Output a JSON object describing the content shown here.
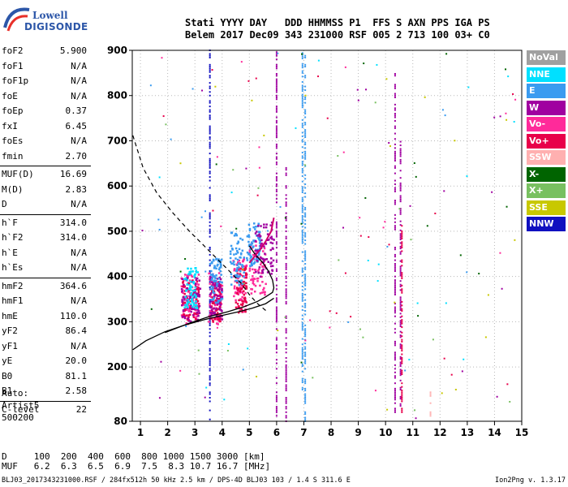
{
  "logo": {
    "line1": "Lowell",
    "line2": "DIGISONDE"
  },
  "header": {
    "line1": "Stati YYYY DAY   DDD HHMMSS P1  FFS S AXN PPS IGA PS",
    "line2": "Belem 2017 Dec09 343 231000 RSF 005 2 713 100 03+ C0"
  },
  "params": [
    {
      "name": "foF2",
      "value": "5.900"
    },
    {
      "name": "foF1",
      "value": "N/A"
    },
    {
      "name": "foF1p",
      "value": "N/A"
    },
    {
      "name": "foE",
      "value": "N/A"
    },
    {
      "name": "foEp",
      "value": "0.37"
    },
    {
      "name": "fxI",
      "value": "6.45"
    },
    {
      "name": "foEs",
      "value": "N/A"
    },
    {
      "name": "fmin",
      "value": "2.70"
    },
    {
      "name": "MUF(D)",
      "value": "16.69"
    },
    {
      "name": "M(D)",
      "value": "2.83"
    },
    {
      "name": "D",
      "value": "N/A"
    },
    {
      "name": "h`F",
      "value": "314.0"
    },
    {
      "name": "h`F2",
      "value": "314.0"
    },
    {
      "name": "h`E",
      "value": "N/A"
    },
    {
      "name": "h`Es",
      "value": "N/A"
    },
    {
      "name": "hmF2",
      "value": "364.6"
    },
    {
      "name": "hmF1",
      "value": "N/A"
    },
    {
      "name": "hmE",
      "value": "110.0"
    },
    {
      "name": "yF2",
      "value": "86.4"
    },
    {
      "name": "yF1",
      "value": "N/A"
    },
    {
      "name": "yE",
      "value": "20.0"
    },
    {
      "name": "B0",
      "value": "81.1"
    },
    {
      "name": "B1",
      "value": "2.58"
    },
    {
      "name": "C-level",
      "value": "22"
    }
  ],
  "auto": {
    "line1": "Auto:",
    "line2": "Artist5",
    "line3": "500200"
  },
  "legend": [
    {
      "label": "NoVal",
      "color": "#a0a0a0"
    },
    {
      "label": "NNE",
      "color": "#00e0ff"
    },
    {
      "label": "E",
      "color": "#3a9bf0"
    },
    {
      "label": "W",
      "color": "#a000a0"
    },
    {
      "label": "Vo-",
      "color": "#ff2a9a"
    },
    {
      "label": "Vo+",
      "color": "#e8004a"
    },
    {
      "label": "SSW",
      "color": "#ffb0b0"
    },
    {
      "label": "X-",
      "color": "#006400"
    },
    {
      "label": "X+",
      "color": "#78c060"
    },
    {
      "label": "SSE",
      "color": "#c8c800"
    },
    {
      "label": "NNW",
      "color": "#1010c0"
    }
  ],
  "muf_table": {
    "line1": "D     100  200  400  600  800 1000 1500 3000 [km]",
    "line2": "MUF   6.2  6.3  6.5  6.9  7.5  8.3 10.7 16.7 [MHz]"
  },
  "footer": "BLJ03_2017343231000.RSF / 284fx512h 50 kHz 2.5 km / DPS-4D BLJ03 103 / 1.4 S 311.6 E",
  "version": "Ion2Png v. 1.3.17",
  "chart_data": {
    "type": "scatter",
    "title": "",
    "xlabel": "",
    "ylabel": "",
    "xlim": [
      0.7,
      15
    ],
    "ylim": [
      80,
      900
    ],
    "x_ticks": [
      1,
      2,
      3,
      4,
      5,
      6,
      7,
      8,
      9,
      10,
      11,
      12,
      13,
      14,
      15
    ],
    "x_tick_labels": [
      "1",
      "2",
      "3",
      "4",
      "5",
      "6",
      "7",
      "8",
      "9",
      "10",
      "11",
      "12",
      "13",
      "14",
      "15"
    ],
    "y_ticks": [
      80,
      200,
      300,
      400,
      500,
      600,
      700,
      800,
      900
    ],
    "y_tick_labels": [
      "80",
      "200",
      "300",
      "400",
      "500",
      "600",
      "700",
      "800",
      "900"
    ],
    "grid": true,
    "profile_curve": {
      "name": "",
      "points": [
        [
          1.9,
          276
        ],
        [
          2.8,
          297
        ],
        [
          3.5,
          311
        ],
        [
          4.2,
          322
        ],
        [
          4.8,
          333
        ],
        [
          5.3,
          345
        ],
        [
          5.6,
          355
        ],
        [
          5.85,
          365
        ],
        [
          5.9,
          375
        ],
        [
          5.85,
          392
        ],
        [
          5.7,
          412
        ],
        [
          5.5,
          430
        ],
        [
          5.2,
          450
        ],
        [
          5.0,
          468
        ]
      ]
    },
    "dashed_curve": {
      "name": "",
      "points": [
        [
          0.72,
          712
        ],
        [
          1.1,
          640
        ],
        [
          1.6,
          585
        ],
        [
          2.2,
          540
        ],
        [
          2.8,
          500
        ],
        [
          3.3,
          470
        ],
        [
          3.8,
          440
        ],
        [
          4.3,
          410
        ],
        [
          4.7,
          385
        ],
        [
          5.0,
          360
        ],
        [
          5.3,
          340
        ],
        [
          5.6,
          325
        ]
      ]
    },
    "ordinary_trace": {
      "points": [
        [
          5.0,
          430
        ],
        [
          5.2,
          445
        ],
        [
          5.4,
          460
        ],
        [
          5.6,
          478
        ],
        [
          5.8,
          500
        ],
        [
          5.9,
          530
        ]
      ]
    },
    "lower_curve": {
      "points": [
        [
          0.72,
          238
        ],
        [
          1.2,
          258
        ],
        [
          1.9,
          278
        ],
        [
          2.6,
          292
        ],
        [
          3.3,
          304
        ],
        [
          4.0,
          314
        ],
        [
          4.6,
          322
        ],
        [
          5.1,
          330
        ],
        [
          5.6,
          340
        ],
        [
          5.9,
          352
        ]
      ]
    },
    "echo_clusters": [
      {
        "color": "#ff2a9a",
        "x": [
          2.5,
          3.2
        ],
        "y": [
          295,
          405
        ]
      },
      {
        "color": "#e8004a",
        "x": [
          2.55,
          3.15
        ],
        "y": [
          300,
          395
        ]
      },
      {
        "color": "#a000a0",
        "x": [
          2.5,
          3.2
        ],
        "y": [
          300,
          400
        ]
      },
      {
        "color": "#00e0ff",
        "x": [
          2.6,
          3.1
        ],
        "y": [
          330,
          420
        ]
      },
      {
        "color": "#ff2a9a",
        "x": [
          3.5,
          4.0
        ],
        "y": [
          295,
          410
        ]
      },
      {
        "color": "#e8004a",
        "x": [
          3.6,
          3.95
        ],
        "y": [
          300,
          390
        ]
      },
      {
        "color": "#a000a0",
        "x": [
          3.55,
          4.0
        ],
        "y": [
          305,
          400
        ]
      },
      {
        "color": "#3a9bf0",
        "x": [
          3.55,
          4.0
        ],
        "y": [
          340,
          440
        ]
      },
      {
        "color": "#ff2a9a",
        "x": [
          4.4,
          4.9
        ],
        "y": [
          320,
          440
        ]
      },
      {
        "color": "#e8004a",
        "x": [
          4.5,
          4.9
        ],
        "y": [
          320,
          420
        ]
      },
      {
        "color": "#3a9bf0",
        "x": [
          4.3,
          4.8
        ],
        "y": [
          380,
          500
        ]
      },
      {
        "color": "#ff2a9a",
        "x": [
          5.0,
          5.6
        ],
        "y": [
          360,
          480
        ]
      },
      {
        "color": "#3a9bf0",
        "x": [
          4.9,
          5.4
        ],
        "y": [
          420,
          520
        ]
      },
      {
        "color": "#a000a0",
        "x": [
          5.2,
          5.9
        ],
        "y": [
          400,
          520
        ]
      }
    ],
    "vertical_streaks": [
      {
        "color": "#1010c0",
        "x": 3.55,
        "y": [
          80,
          900
        ]
      },
      {
        "color": "#a000a0",
        "x": 6.0,
        "y": [
          80,
          900
        ]
      },
      {
        "color": "#3a9bf0",
        "x": 7.05,
        "y": [
          80,
          900
        ]
      },
      {
        "color": "#3a9bf0",
        "x": 6.95,
        "y": [
          150,
          900
        ]
      },
      {
        "color": "#a000a0",
        "x": 10.35,
        "y": [
          100,
          850
        ]
      },
      {
        "color": "#a000a0",
        "x": 10.55,
        "y": [
          110,
          700
        ]
      },
      {
        "color": "#e8004a",
        "x": 10.6,
        "y": [
          100,
          520
        ]
      },
      {
        "color": "#a000a0",
        "x": 6.35,
        "y": [
          80,
          650
        ]
      },
      {
        "color": "#ffb0b0",
        "x": 11.65,
        "y": [
          80,
          150
        ]
      }
    ]
  }
}
